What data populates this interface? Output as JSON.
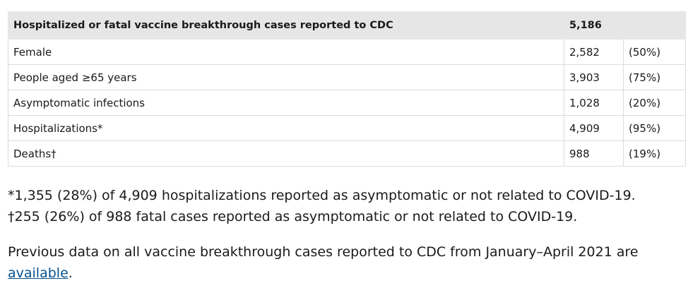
{
  "table": {
    "header": {
      "label": "Hospitalized or fatal vaccine breakthrough cases reported to CDC",
      "value": "5,186",
      "percent": ""
    },
    "rows": [
      {
        "label": "Female",
        "value": "2,582",
        "percent": "(50%)"
      },
      {
        "label": "People aged ≥65 years",
        "value": "3,903",
        "percent": "(75%)"
      },
      {
        "label": "Asymptomatic infections",
        "value": "1,028",
        "percent": "(20%)"
      },
      {
        "label": "Hospitalizations*",
        "value": "4,909",
        "percent": "(95%)"
      },
      {
        "label": "Deaths†",
        "value": "988",
        "percent": "(19%)"
      }
    ]
  },
  "footnotes": {
    "asterisk": "*1,355 (28%) of 4,909 hospitalizations reported as asymptomatic or not related to COVID-19.",
    "dagger": "†255 (26%) of 988 fatal cases reported as asymptomatic or not related to COVID-19."
  },
  "previous_data": {
    "text": "Previous data on all vaccine breakthrough cases reported to CDC from January–April 2021 are",
    "link_text": "available",
    "trailing": "."
  }
}
